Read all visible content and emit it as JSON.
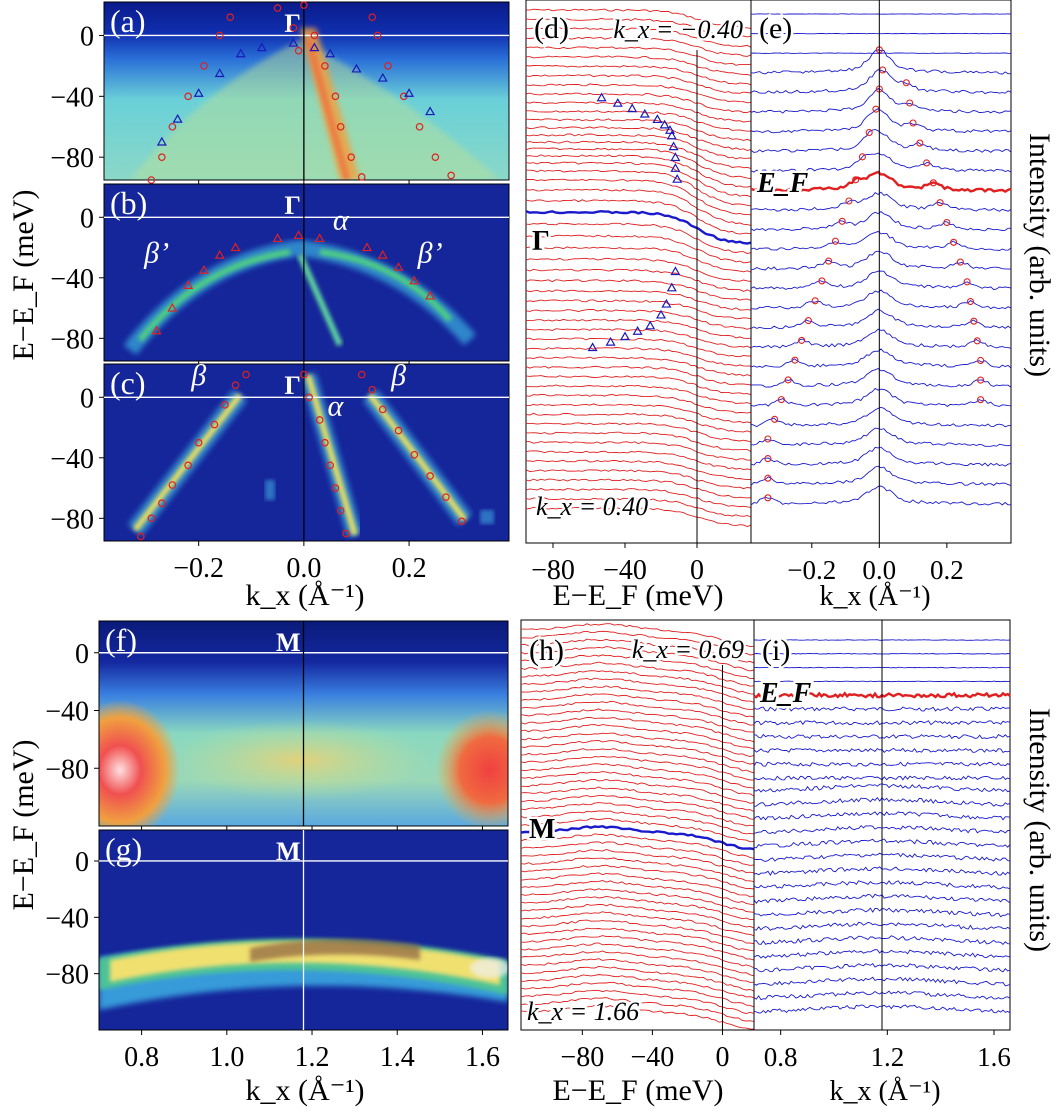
{
  "figure": {
    "ylabel_energy": "E−E_F (meV)",
    "ylabel_intensity": "Intensity (arb. units)",
    "xlabel_k": "k_x (Å⁻¹)",
    "xlabel_E": "E−E_F (meV)"
  },
  "colors": {
    "red_mark": "#e02020",
    "blue_mark": "#1a1ab8",
    "curve_red": "#e02020",
    "curve_blue": "#1a1acc",
    "background": "#ffffff"
  },
  "chart_data": [
    {
      "id": "a",
      "type": "heatmap",
      "panel_label": "(a)",
      "point_label": "Γ",
      "xlim": [
        -0.38,
        0.39
      ],
      "ylim": [
        -95,
        22
      ],
      "yticks": [
        0,
        -40,
        -80
      ],
      "xticks": [],
      "red_circles": [
        [
          -0.29,
          -95
        ],
        [
          -0.27,
          -80
        ],
        [
          -0.25,
          -60
        ],
        [
          -0.22,
          -40
        ],
        [
          -0.19,
          -20
        ],
        [
          -0.16,
          0
        ],
        [
          -0.14,
          12
        ],
        [
          0.0,
          20
        ],
        [
          0.02,
          0
        ],
        [
          0.04,
          -20
        ],
        [
          0.06,
          -40
        ],
        [
          0.07,
          -60
        ],
        [
          0.09,
          -80
        ],
        [
          0.11,
          -93
        ],
        [
          0.13,
          12
        ],
        [
          0.14,
          0
        ],
        [
          0.16,
          -20
        ],
        [
          0.19,
          -40
        ],
        [
          0.22,
          -60
        ],
        [
          0.25,
          -80
        ],
        [
          0.28,
          -92
        ],
        [
          -0.05,
          18
        ],
        [
          -0.02,
          5
        ],
        [
          -0.01,
          -10
        ]
      ],
      "blue_triangles": [
        [
          -0.27,
          -70
        ],
        [
          -0.24,
          -55
        ],
        [
          -0.2,
          -38
        ],
        [
          -0.16,
          -25
        ],
        [
          -0.12,
          -12
        ],
        [
          -0.08,
          -8
        ],
        [
          -0.02,
          -5
        ],
        [
          0.02,
          -8
        ],
        [
          0.05,
          -12
        ],
        [
          0.1,
          -22
        ],
        [
          0.15,
          -28
        ],
        [
          0.2,
          -38
        ],
        [
          0.24,
          -50
        ]
      ]
    },
    {
      "id": "b",
      "type": "heatmap",
      "panel_label": "(b)",
      "point_label": "Γ",
      "xlim": [
        -0.38,
        0.39
      ],
      "ylim": [
        -95,
        22
      ],
      "yticks": [
        0,
        -40,
        -80
      ],
      "xticks": [],
      "band_labels": [
        {
          "text": "β’",
          "k": -0.28,
          "e": -30
        },
        {
          "text": "α",
          "k": 0.07,
          "e": -8
        },
        {
          "text": "β’",
          "k": 0.24,
          "e": -30
        }
      ],
      "red_triangles": [
        [
          -0.28,
          -75
        ],
        [
          -0.25,
          -60
        ],
        [
          -0.22,
          -45
        ],
        [
          -0.19,
          -35
        ],
        [
          -0.16,
          -25
        ],
        [
          -0.13,
          -20
        ],
        [
          -0.05,
          -14
        ],
        [
          -0.01,
          -12
        ],
        [
          0.03,
          -14
        ],
        [
          0.12,
          -20
        ],
        [
          0.15,
          -25
        ],
        [
          0.18,
          -33
        ],
        [
          0.21,
          -42
        ],
        [
          0.24,
          -52
        ]
      ]
    },
    {
      "id": "c",
      "type": "heatmap",
      "panel_label": "(c)",
      "point_label": "Γ",
      "xlim": [
        -0.38,
        0.39
      ],
      "ylim": [
        -95,
        22
      ],
      "yticks": [
        0,
        -40,
        -80
      ],
      "xticks": [
        -0.2,
        0.0,
        0.2
      ],
      "band_labels": [
        {
          "text": "β",
          "k": -0.2,
          "e": 8
        },
        {
          "text": "α",
          "k": 0.06,
          "e": -12
        },
        {
          "text": "β",
          "k": 0.18,
          "e": 8
        }
      ],
      "red_circles": [
        [
          -0.31,
          -92
        ],
        [
          -0.29,
          -80
        ],
        [
          -0.27,
          -70
        ],
        [
          -0.25,
          -58
        ],
        [
          -0.22,
          -45
        ],
        [
          -0.2,
          -30
        ],
        [
          -0.17,
          -18
        ],
        [
          -0.15,
          -5
        ],
        [
          -0.13,
          8
        ],
        [
          -0.11,
          15
        ],
        [
          0.0,
          15
        ],
        [
          0.01,
          0
        ],
        [
          0.03,
          -15
        ],
        [
          0.04,
          -30
        ],
        [
          0.05,
          -45
        ],
        [
          0.06,
          -60
        ],
        [
          0.07,
          -75
        ],
        [
          0.08,
          -90
        ],
        [
          0.11,
          15
        ],
        [
          0.13,
          5
        ],
        [
          0.15,
          -8
        ],
        [
          0.18,
          -22
        ],
        [
          0.21,
          -38
        ],
        [
          0.24,
          -52
        ],
        [
          0.27,
          -66
        ],
        [
          0.3,
          -82
        ]
      ]
    },
    {
      "id": "d",
      "type": "line",
      "panel_label": "(d)",
      "top_text": "k_x = −0.40",
      "bottom_text": "k_x = 0.40",
      "highlight_label": "Γ",
      "xlim": [
        -95,
        30
      ],
      "xticks": [
        -80,
        -40,
        0
      ],
      "curve_count": 54,
      "blue_triangles": [
        [
          -53,
          0.18
        ],
        [
          -44,
          0.19
        ],
        [
          -36,
          0.2
        ],
        [
          -29,
          0.21
        ],
        [
          -22,
          0.22
        ],
        [
          -18,
          0.23
        ],
        [
          -15,
          0.24
        ],
        [
          -14,
          0.25
        ],
        [
          -13,
          0.27
        ],
        [
          -12,
          0.29
        ],
        [
          -12,
          0.31
        ],
        [
          -11,
          0.33
        ],
        [
          -12,
          0.5
        ],
        [
          -14,
          0.53
        ],
        [
          -17,
          0.56
        ],
        [
          -20,
          0.58
        ],
        [
          -26,
          0.6
        ],
        [
          -33,
          0.61
        ],
        [
          -40,
          0.62
        ],
        [
          -48,
          0.63
        ],
        [
          -58,
          0.64
        ]
      ]
    },
    {
      "id": "e",
      "type": "line",
      "panel_label": "(e)",
      "highlight_label": "E_F",
      "xlim": [
        -0.38,
        0.39
      ],
      "xticks": [
        -0.2,
        0.0,
        0.2
      ],
      "curve_count": 26,
      "red_circles_per_curve": [
        [],
        [],
        [],
        [
          0.0
        ],
        [
          0.01,
          0.08
        ],
        [
          0.0,
          0.09
        ],
        [
          -0.01,
          0.1
        ],
        [
          -0.03,
          0.12
        ],
        [
          -0.05,
          0.14
        ],
        [
          -0.07,
          0.16
        ],
        [
          -0.09,
          0.18
        ],
        [
          -0.11,
          0.2
        ],
        [
          -0.13,
          0.22
        ],
        [
          -0.15,
          0.24
        ],
        [
          -0.17,
          0.26
        ],
        [
          -0.19,
          0.27
        ],
        [
          -0.21,
          0.28
        ],
        [
          -0.23,
          0.29
        ],
        [
          -0.25,
          0.3
        ],
        [
          -0.27,
          0.3
        ],
        [
          -0.29,
          0.3
        ],
        [
          -0.31
        ],
        [
          -0.33
        ],
        [
          -0.33
        ],
        [
          -0.33
        ],
        [
          -0.33
        ]
      ]
    },
    {
      "id": "f",
      "type": "heatmap",
      "panel_label": "(f)",
      "point_label": "M",
      "xlim": [
        0.7,
        1.66
      ],
      "ylim": [
        -120,
        22
      ],
      "yticks": [
        0,
        -40,
        -80
      ],
      "xticks": []
    },
    {
      "id": "g",
      "type": "heatmap",
      "panel_label": "(g)",
      "point_label": "M",
      "xlim": [
        0.7,
        1.66
      ],
      "ylim": [
        -120,
        22
      ],
      "yticks": [
        0,
        -40,
        -80
      ],
      "xticks": [
        0.8,
        1.0,
        1.2,
        1.4,
        1.6
      ]
    },
    {
      "id": "h",
      "type": "line",
      "panel_label": "(h)",
      "top_text": "k_x = 0.69",
      "bottom_text": "k_x = 1.66",
      "highlight_label": "M",
      "xlim": [
        -115,
        18
      ],
      "xticks": [
        -80,
        -40,
        0
      ],
      "curve_count": 50
    },
    {
      "id": "i",
      "type": "line",
      "panel_label": "(i)",
      "highlight_label": "E_F",
      "xlim": [
        0.7,
        1.66
      ],
      "xticks": [
        0.8,
        1.2,
        1.6
      ],
      "curve_count": 28
    }
  ]
}
